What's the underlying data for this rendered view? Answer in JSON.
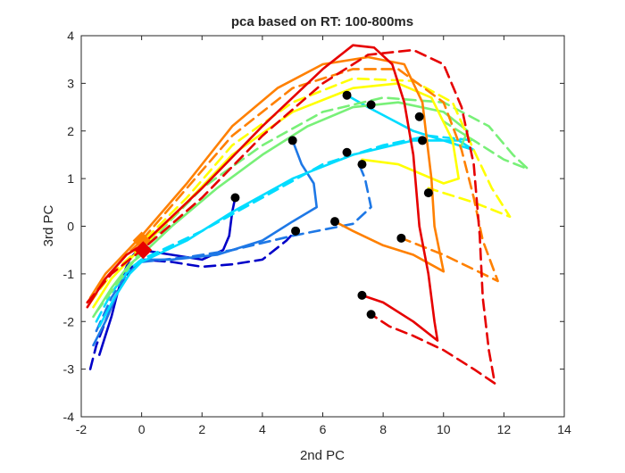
{
  "chart_data": {
    "type": "line",
    "title": "pca based on RT: 100-800ms",
    "xlabel": "2nd PC",
    "ylabel": "3rd PC",
    "xlim": [
      -2,
      14
    ],
    "ylim": [
      -4,
      4
    ],
    "xticks": [
      -2,
      0,
      2,
      4,
      6,
      8,
      10,
      12,
      14
    ],
    "yticks": [
      -4,
      -3,
      -2,
      -1,
      0,
      1,
      2,
      3,
      4
    ],
    "grid": false,
    "legend": "none",
    "series": [
      {
        "color": "#0000c8",
        "dash": false,
        "values": [
          [
            -1.4,
            -2.7
          ],
          [
            -1.2,
            -2.3
          ],
          [
            -1.0,
            -1.9
          ],
          [
            -0.8,
            -1.4
          ],
          [
            -0.6,
            -1.0
          ],
          [
            -0.4,
            -0.7
          ],
          [
            -0.2,
            -0.55
          ],
          [
            0.0,
            -0.5
          ],
          [
            1.0,
            -0.6
          ],
          [
            2.0,
            -0.7
          ],
          [
            2.7,
            -0.5
          ],
          [
            2.9,
            -0.2
          ],
          [
            3.0,
            0.3
          ],
          [
            3.1,
            0.6
          ]
        ]
      },
      {
        "color": "#0000c8",
        "dash": true,
        "values": [
          [
            -1.7,
            -3.0
          ],
          [
            -1.5,
            -2.5
          ],
          [
            -1.2,
            -2.0
          ],
          [
            -0.8,
            -1.4
          ],
          [
            -0.4,
            -0.9
          ],
          [
            0.0,
            -0.7
          ],
          [
            1.0,
            -0.75
          ],
          [
            2.0,
            -0.85
          ],
          [
            3.0,
            -0.8
          ],
          [
            4.0,
            -0.7
          ],
          [
            4.8,
            -0.3
          ],
          [
            5.1,
            -0.1
          ]
        ]
      },
      {
        "color": "#1e78e6",
        "dash": false,
        "values": [
          [
            -1.6,
            -2.5
          ],
          [
            -1.2,
            -2.0
          ],
          [
            -0.8,
            -1.4
          ],
          [
            -0.3,
            -0.9
          ],
          [
            0.0,
            -0.7
          ],
          [
            1.0,
            -0.7
          ],
          [
            2.5,
            -0.6
          ],
          [
            4.0,
            -0.3
          ],
          [
            5.0,
            0.1
          ],
          [
            5.8,
            0.4
          ],
          [
            5.7,
            0.9
          ],
          [
            5.3,
            1.3
          ],
          [
            5.0,
            1.8
          ]
        ]
      },
      {
        "color": "#1e78e6",
        "dash": true,
        "values": [
          [
            -1.5,
            -2.2
          ],
          [
            -1.0,
            -1.5
          ],
          [
            -0.5,
            -1.0
          ],
          [
            0.0,
            -0.75
          ],
          [
            1.5,
            -0.65
          ],
          [
            3.0,
            -0.5
          ],
          [
            5.0,
            -0.2
          ],
          [
            7.0,
            0.05
          ],
          [
            7.6,
            0.4
          ],
          [
            7.4,
            1.0
          ],
          [
            7.2,
            1.3
          ]
        ]
      },
      {
        "color": "#00dcff",
        "dash": false,
        "values": [
          [
            -1.4,
            -2.1
          ],
          [
            -0.9,
            -1.5
          ],
          [
            -0.4,
            -1.0
          ],
          [
            0.0,
            -0.75
          ],
          [
            1.5,
            -0.3
          ],
          [
            3.0,
            0.3
          ],
          [
            5.0,
            1.0
          ],
          [
            7.0,
            1.5
          ],
          [
            9.0,
            1.8
          ],
          [
            10.5,
            1.8
          ],
          [
            11.0,
            1.6
          ],
          [
            9.0,
            2.0
          ],
          [
            7.5,
            2.5
          ],
          [
            6.8,
            2.75
          ]
        ]
      },
      {
        "color": "#00dcff",
        "dash": true,
        "values": [
          [
            -1.5,
            -2.0
          ],
          [
            -1.0,
            -1.4
          ],
          [
            -0.4,
            -0.9
          ],
          [
            0.0,
            -0.7
          ],
          [
            2.0,
            -0.1
          ],
          [
            4.0,
            0.6
          ],
          [
            6.0,
            1.3
          ],
          [
            8.0,
            1.7
          ],
          [
            9.5,
            1.9
          ],
          [
            11.0,
            1.8
          ]
        ]
      },
      {
        "color": "#78f078",
        "dash": false,
        "values": [
          [
            -1.6,
            -1.9
          ],
          [
            -1.0,
            -1.3
          ],
          [
            -0.4,
            -0.8
          ],
          [
            0.0,
            -0.6
          ],
          [
            1.0,
            0.0
          ],
          [
            2.5,
            0.8
          ],
          [
            4.0,
            1.5
          ],
          [
            5.5,
            2.1
          ],
          [
            7.0,
            2.5
          ],
          [
            8.5,
            2.6
          ],
          [
            10.0,
            2.4
          ],
          [
            10.8,
            2.0
          ],
          [
            10.6,
            1.7
          ]
        ]
      },
      {
        "color": "#78f078",
        "dash": true,
        "values": [
          [
            -1.5,
            -1.8
          ],
          [
            -0.8,
            -1.2
          ],
          [
            0.0,
            -0.5
          ],
          [
            2.0,
            0.8
          ],
          [
            4.0,
            1.7
          ],
          [
            6.0,
            2.4
          ],
          [
            8.0,
            2.7
          ],
          [
            10.0,
            2.6
          ],
          [
            11.5,
            2.1
          ],
          [
            12.3,
            1.5
          ],
          [
            12.8,
            1.2
          ],
          [
            12.0,
            1.4
          ],
          [
            11.0,
            1.8
          ],
          [
            10.0,
            2.2
          ]
        ]
      },
      {
        "color": "#ffff00",
        "dash": false,
        "values": [
          [
            -1.6,
            -1.7
          ],
          [
            -1.0,
            -1.1
          ],
          [
            -0.4,
            -0.7
          ],
          [
            0.0,
            -0.45
          ],
          [
            1.5,
            0.5
          ],
          [
            3.0,
            1.5
          ],
          [
            5.0,
            2.4
          ],
          [
            7.0,
            2.9
          ],
          [
            8.5,
            3.0
          ],
          [
            9.6,
            2.7
          ],
          [
            10.3,
            1.8
          ],
          [
            10.5,
            1.0
          ],
          [
            10.0,
            0.9
          ],
          [
            8.5,
            1.3
          ],
          [
            7.3,
            1.4
          ]
        ]
      },
      {
        "color": "#ffff00",
        "dash": true,
        "values": [
          [
            -1.7,
            -1.6
          ],
          [
            -1.0,
            -1.0
          ],
          [
            -0.3,
            -0.6
          ],
          [
            0.0,
            -0.35
          ],
          [
            1.5,
            0.6
          ],
          [
            3.0,
            1.7
          ],
          [
            5.0,
            2.6
          ],
          [
            7.0,
            3.1
          ],
          [
            9.0,
            3.05
          ],
          [
            10.3,
            2.6
          ],
          [
            11.0,
            1.6
          ],
          [
            11.6,
            0.8
          ],
          [
            12.2,
            0.2
          ],
          [
            11.0,
            0.5
          ],
          [
            9.5,
            0.8
          ]
        ]
      },
      {
        "color": "#ff8000",
        "dash": false,
        "values": [
          [
            -1.7,
            -1.5
          ],
          [
            -1.2,
            -1.0
          ],
          [
            -0.6,
            -0.6
          ],
          [
            0.0,
            -0.2
          ],
          [
            1.5,
            0.9
          ],
          [
            3.0,
            2.1
          ],
          [
            4.5,
            2.9
          ],
          [
            6.0,
            3.4
          ],
          [
            7.5,
            3.55
          ],
          [
            8.7,
            3.4
          ],
          [
            9.3,
            2.6
          ],
          [
            9.6,
            1.0
          ],
          [
            9.7,
            0.0
          ],
          [
            10.0,
            -0.95
          ],
          [
            9.0,
            -0.6
          ],
          [
            8.0,
            -0.4
          ],
          [
            7.0,
            -0.1
          ],
          [
            6.4,
            0.1
          ]
        ]
      },
      {
        "color": "#ff8000",
        "dash": true,
        "values": [
          [
            -1.8,
            -1.6
          ],
          [
            -1.2,
            -1.1
          ],
          [
            -0.5,
            -0.6
          ],
          [
            0.0,
            -0.3
          ],
          [
            1.5,
            0.8
          ],
          [
            3.0,
            1.9
          ],
          [
            5.0,
            2.9
          ],
          [
            7.0,
            3.3
          ],
          [
            8.5,
            3.3
          ],
          [
            10.0,
            2.6
          ],
          [
            10.6,
            1.6
          ],
          [
            11.0,
            0.6
          ],
          [
            11.3,
            -0.3
          ],
          [
            11.8,
            -1.15
          ],
          [
            10.0,
            -0.6
          ],
          [
            8.6,
            -0.25
          ]
        ]
      },
      {
        "color": "#e60000",
        "dash": false,
        "values": [
          [
            -1.8,
            -1.7
          ],
          [
            -1.2,
            -1.1
          ],
          [
            -0.5,
            -0.6
          ],
          [
            0.0,
            -0.4
          ],
          [
            2.0,
            0.8
          ],
          [
            4.0,
            2.1
          ],
          [
            6.0,
            3.3
          ],
          [
            7.0,
            3.8
          ],
          [
            7.7,
            3.75
          ],
          [
            8.3,
            3.4
          ],
          [
            8.7,
            2.6
          ],
          [
            9.0,
            1.5
          ],
          [
            9.2,
            0.0
          ],
          [
            9.5,
            -1.0
          ],
          [
            9.7,
            -2.0
          ],
          [
            9.8,
            -2.4
          ],
          [
            9.0,
            -2.0
          ],
          [
            8.0,
            -1.6
          ],
          [
            7.3,
            -1.45
          ]
        ]
      },
      {
        "color": "#e60000",
        "dash": true,
        "values": [
          [
            -1.8,
            -1.6
          ],
          [
            -1.0,
            -1.0
          ],
          [
            0.0,
            -0.5
          ],
          [
            2.0,
            0.6
          ],
          [
            4.0,
            1.9
          ],
          [
            6.0,
            3.0
          ],
          [
            7.5,
            3.6
          ],
          [
            9.0,
            3.7
          ],
          [
            10.0,
            3.4
          ],
          [
            10.6,
            2.5
          ],
          [
            11.0,
            1.3
          ],
          [
            11.2,
            -0.2
          ],
          [
            11.3,
            -1.5
          ],
          [
            11.5,
            -2.6
          ],
          [
            11.7,
            -3.3
          ],
          [
            11.0,
            -3.0
          ],
          [
            10.0,
            -2.6
          ],
          [
            9.0,
            -2.3
          ],
          [
            8.2,
            -2.1
          ],
          [
            7.6,
            -1.85
          ]
        ]
      }
    ],
    "start_markers": [
      {
        "color": "#ff8000",
        "x": 0.0,
        "y": -0.3
      },
      {
        "color": "#e60000",
        "x": 0.05,
        "y": -0.5
      }
    ],
    "dots": [
      [
        3.1,
        0.6
      ],
      [
        5.1,
        -0.1
      ],
      [
        5.0,
        1.8
      ],
      [
        6.4,
        0.1
      ],
      [
        6.8,
        2.75
      ],
      [
        7.6,
        2.55
      ],
      [
        6.8,
        1.55
      ],
      [
        7.3,
        1.3
      ],
      [
        9.2,
        2.3
      ],
      [
        9.3,
        1.8
      ],
      [
        9.5,
        0.7
      ],
      [
        8.6,
        -0.25
      ],
      [
        7.3,
        -1.45
      ],
      [
        7.6,
        -1.85
      ]
    ]
  }
}
